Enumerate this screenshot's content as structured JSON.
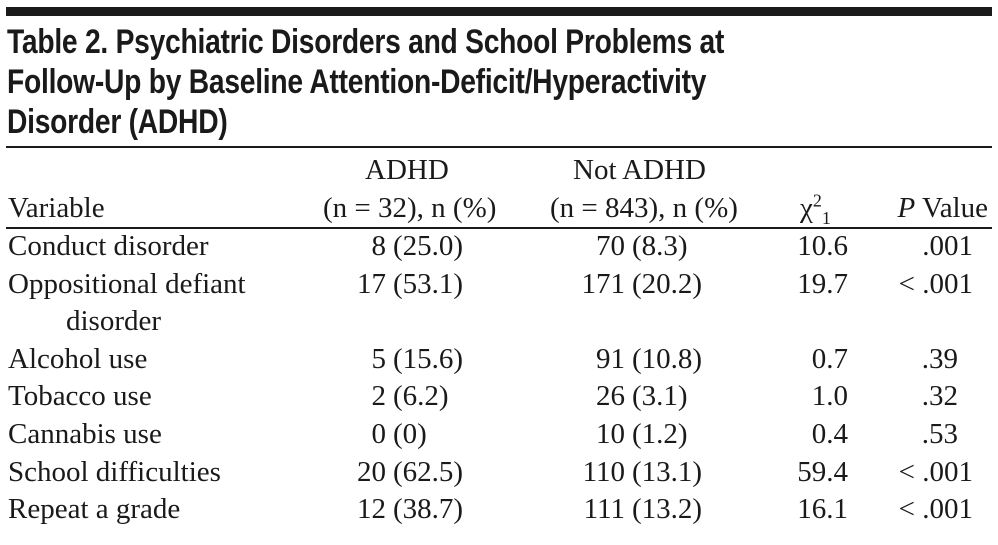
{
  "title": {
    "lines": [
      "Table 2. Psychiatric Disorders and School Problems at",
      "Follow-Up by Baseline Attention-Deficit/Hyperactivity",
      "Disorder (ADHD)"
    ]
  },
  "header": {
    "variable": "Variable",
    "adhd_line1": "ADHD",
    "adhd_line2": "(n = 32), n (%)",
    "not_adhd_line1": "Not ADHD",
    "not_adhd_line2": "(n = 843), n (%)",
    "chi_symbol": "χ",
    "chi_sup": "2",
    "chi_sub": "1",
    "p_italic": "P",
    "p_rest": " Value"
  },
  "rows": [
    {
      "variable": "Conduct disorder",
      "variable_cont": "",
      "adhd_n": "8",
      "adhd_pct": "(25.0)",
      "not_n": "70",
      "not_pct": "(8.3)",
      "chi2": "10.6",
      "p": ".001"
    },
    {
      "variable": "Oppositional defiant",
      "variable_cont": "disorder",
      "adhd_n": "17",
      "adhd_pct": "(53.1)",
      "not_n": "171",
      "not_pct": "(20.2)",
      "chi2": "19.7",
      "p": "< .001"
    },
    {
      "variable": "Alcohol use",
      "variable_cont": "",
      "adhd_n": "5",
      "adhd_pct": "(15.6)",
      "not_n": "91",
      "not_pct": "(10.8)",
      "chi2": "0.7",
      "p": ".39"
    },
    {
      "variable": "Tobacco use",
      "variable_cont": "",
      "adhd_n": "2",
      "adhd_pct": "(6.2)",
      "not_n": "26",
      "not_pct": "(3.1)",
      "chi2": "1.0",
      "p": ".32"
    },
    {
      "variable": "Cannabis use",
      "variable_cont": "",
      "adhd_n": "0",
      "adhd_pct": "(0)",
      "not_n": "10",
      "not_pct": "(1.2)",
      "chi2": "0.4",
      "p": ".53"
    },
    {
      "variable": "School difficulties",
      "variable_cont": "",
      "adhd_n": "20",
      "adhd_pct": "(62.5)",
      "not_n": "110",
      "not_pct": "(13.1)",
      "chi2": "59.4",
      "p": "< .001"
    },
    {
      "variable": "Repeat a grade",
      "variable_cont": "",
      "adhd_n": "12",
      "adhd_pct": "(38.7)",
      "not_n": "111",
      "not_pct": "(13.2)",
      "chi2": "16.1",
      "p": "< .001"
    }
  ]
}
